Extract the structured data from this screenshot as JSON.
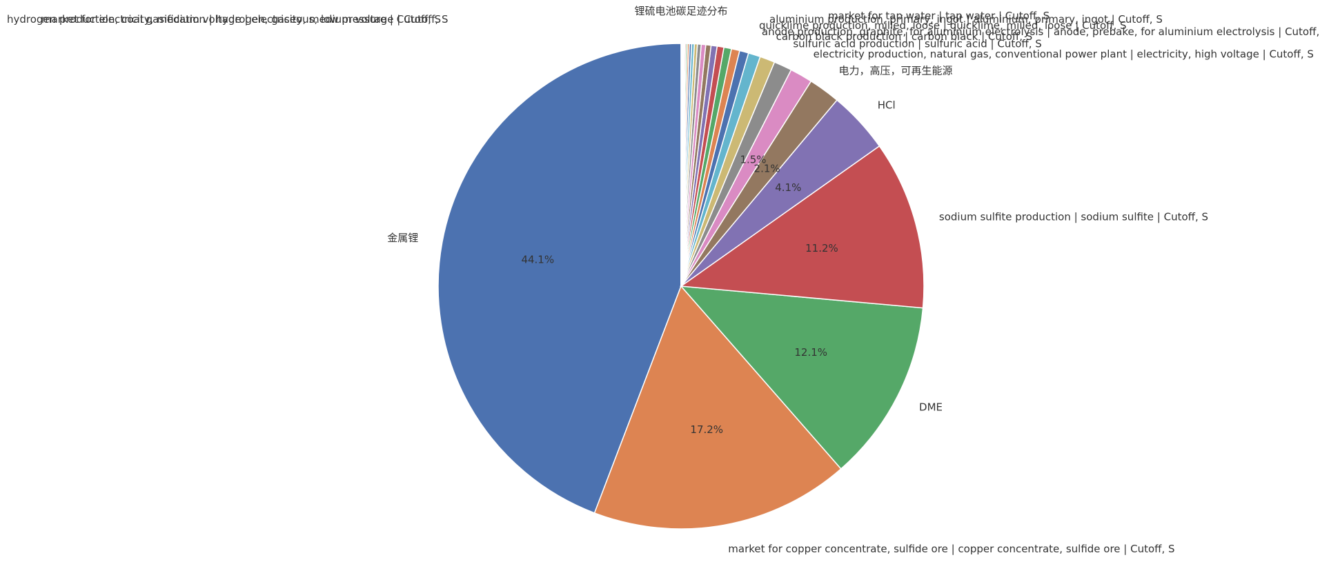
{
  "chart_data": {
    "type": "pie",
    "title": "锂硫电池碳足迹分布",
    "start_angle_deg": 90,
    "direction": "counterclockwise",
    "slices": [
      {
        "label": "金属锂",
        "value": 44.1,
        "pct_label": "44.1%",
        "color": "#4c72b0"
      },
      {
        "label": "market for copper concentrate, sulfide ore | copper concentrate, sulfide ore | Cutoff, S",
        "value": 17.2,
        "pct_label": "17.2%",
        "color": "#dd8452"
      },
      {
        "label": "DME",
        "value": 12.1,
        "pct_label": "12.1%",
        "color": "#55a868"
      },
      {
        "label": "sodium sulfite production | sodium sulfite | Cutoff, S",
        "value": 11.2,
        "pct_label": "11.2%",
        "color": "#c44e52"
      },
      {
        "label": "HCl",
        "value": 4.1,
        "pct_label": "4.1%",
        "color": "#8172b3"
      },
      {
        "label": "电力，高压，可再生能源",
        "value": 2.1,
        "pct_label": "2.1%",
        "color": "#937860"
      },
      {
        "label": "electricity production, natural gas, conventional power plant | electricity, high voltage | Cutoff, S",
        "value": 1.5,
        "pct_label": "1.5%",
        "color": "#da8bc3"
      },
      {
        "label": "sulfuric acid production | sulfuric acid | Cutoff, S",
        "value": 1.2,
        "pct_label": "",
        "color": "#8c8c8c"
      },
      {
        "label": "carbon black production | carbon black | Cutoff, S",
        "value": 1.0,
        "pct_label": "",
        "color": "#ccb974"
      },
      {
        "label": "anode production, graphite, for aluminium electrolysis | anode, prebake, for aluminium electrolysis | Cutoff, S",
        "value": 0.8,
        "pct_label": "",
        "color": "#64b5cd"
      },
      {
        "label": "",
        "value": 0.6,
        "pct_label": "",
        "color": "#4c72b0"
      },
      {
        "label": "",
        "value": 0.55,
        "pct_label": "",
        "color": "#dd8452"
      },
      {
        "label": "",
        "value": 0.5,
        "pct_label": "",
        "color": "#55a868"
      },
      {
        "label": "",
        "value": 0.45,
        "pct_label": "",
        "color": "#c44e52"
      },
      {
        "label": "",
        "value": 0.4,
        "pct_label": "",
        "color": "#8172b3"
      },
      {
        "label": "",
        "value": 0.35,
        "pct_label": "",
        "color": "#937860"
      },
      {
        "label": "",
        "value": 0.3,
        "pct_label": "",
        "color": "#da8bc3"
      },
      {
        "label": "",
        "value": 0.25,
        "pct_label": "",
        "color": "#8c8c8c"
      },
      {
        "label": "",
        "value": 0.2,
        "pct_label": "",
        "color": "#ccb974"
      },
      {
        "label": "",
        "value": 0.18,
        "pct_label": "",
        "color": "#64b5cd"
      },
      {
        "label": "",
        "value": 0.15,
        "pct_label": "",
        "color": "#4c72b0"
      },
      {
        "label": "",
        "value": 0.12,
        "pct_label": "",
        "color": "#dd8452"
      },
      {
        "label": "",
        "value": 0.1,
        "pct_label": "",
        "color": "#55a868"
      },
      {
        "label": "",
        "value": 0.08,
        "pct_label": "",
        "color": "#c44e52"
      },
      {
        "label": "",
        "value": 0.06,
        "pct_label": "",
        "color": "#8172b3"
      },
      {
        "label": "",
        "value": 0.05,
        "pct_label": "",
        "color": "#937860"
      },
      {
        "label": "",
        "value": 0.04,
        "pct_label": "",
        "color": "#da8bc3"
      },
      {
        "label": "",
        "value": 0.03,
        "pct_label": "",
        "color": "#8c8c8c"
      },
      {
        "label": "",
        "value": 0.02,
        "pct_label": "",
        "color": "#ccb974"
      },
      {
        "label": "",
        "value": 0.02,
        "pct_label": "",
        "color": "#64b5cd"
      },
      {
        "label": "",
        "value": 0.01,
        "pct_label": "",
        "color": "#4c72b0"
      },
      {
        "label": "",
        "value": 0.01,
        "pct_label": "",
        "color": "#dd8452"
      }
    ],
    "overflow_labels": [
      "hydrogen production, coal gasification | hydrogen, gaseous, low pressure | Cutoff, S",
      "market for electricity, medium voltage | electricity, medium voltage | Cutoff, S",
      "aluminium production, primary, ingot | aluminium, primary, ingot | Cutoff, S",
      "quicklime production, milled, loose | quicklime, milled, loose | Cutoff, S",
      "market for tap water | tap water | Cutoff, S"
    ]
  }
}
